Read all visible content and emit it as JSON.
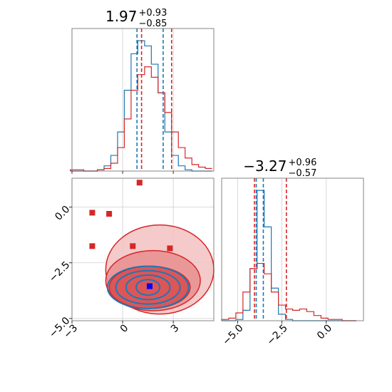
{
  "colors": {
    "red": "#d62728",
    "blue": "#1f77b4",
    "red_fill": "#e8898a",
    "grid": "#cfcfcf"
  },
  "chart_data": [
    {
      "type": "histogram",
      "panel": "top-left",
      "title_value": "1.97",
      "title_plus": "+0.93",
      "title_minus": "−0.85",
      "xlim": [
        -3,
        5.4
      ],
      "bins_x": [
        -2.9,
        -2.5,
        -2.1,
        -1.7,
        -1.3,
        -0.9,
        -0.5,
        -0.1,
        0.3,
        0.7,
        1.1,
        1.5,
        1.9,
        2.3,
        2.7,
        3.1,
        3.5,
        3.9,
        4.3,
        4.7,
        5.1
      ],
      "series": [
        {
          "color": "blue",
          "density": [
            0,
            0,
            0,
            0,
            0.01,
            0.04,
            0.12,
            0.3,
            0.62,
            0.9,
            1.0,
            0.96,
            0.82,
            0.6,
            0.3,
            0.12,
            0.04,
            0.01,
            0,
            0,
            0
          ]
        },
        {
          "color": "red",
          "density": [
            0.01,
            0.01,
            0,
            0,
            0.01,
            0.02,
            0.06,
            0.18,
            0.4,
            0.62,
            0.74,
            0.8,
            0.72,
            0.6,
            0.45,
            0.3,
            0.18,
            0.1,
            0.05,
            0.03,
            0.02
          ]
        }
      ],
      "quantiles": [
        {
          "color": "blue",
          "values": [
            0.85,
            2.4
          ]
        },
        {
          "color": "red",
          "values": [
            1.12,
            2.9
          ]
        }
      ]
    },
    {
      "type": "scatter",
      "panel": "bottom-left",
      "xlim": [
        -3,
        5.4
      ],
      "ylim": [
        -5.1,
        1.3
      ],
      "x_ticks": [
        -3,
        0,
        3
      ],
      "x_tick_labels": [
        "−3",
        "0",
        "3"
      ],
      "y_ticks": [
        -5.0,
        -2.5,
        0.0
      ],
      "y_tick_labels": [
        "−5.0",
        "−2.5",
        "0.0"
      ],
      "red_squares": [
        [
          1.0,
          1.1
        ],
        [
          -1.8,
          -0.25
        ],
        [
          -0.8,
          -0.3
        ],
        [
          -1.8,
          -1.75
        ],
        [
          0.6,
          -1.75
        ],
        [
          2.8,
          -1.85
        ]
      ],
      "blue_square": [
        1.6,
        -3.55
      ],
      "red_contours": [
        {
          "cx": 1.6,
          "cy": -3.6,
          "rx": 2.4,
          "ry": 0.95
        },
        {
          "cx": 1.8,
          "cy": -3.3,
          "rx": 2.8,
          "ry": 1.35
        },
        {
          "cx": 2.2,
          "cy": -2.8,
          "rx": 3.2,
          "ry": 2.0
        }
      ],
      "blue_contours": [
        {
          "cx": 1.5,
          "cy": -3.6,
          "rx": 0.7,
          "ry": 0.35
        },
        {
          "cx": 1.5,
          "cy": -3.6,
          "rx": 1.3,
          "ry": 0.55
        },
        {
          "cx": 1.5,
          "cy": -3.6,
          "rx": 1.9,
          "ry": 0.75
        },
        {
          "cx": 1.5,
          "cy": -3.6,
          "rx": 2.4,
          "ry": 0.95
        }
      ]
    },
    {
      "type": "histogram",
      "panel": "bottom-right",
      "title_value": "−3.27",
      "title_plus": "+0.96",
      "title_minus": "−0.57",
      "xlim": [
        -5.9,
        2.1
      ],
      "x_ticks": [
        -5.0,
        -2.5,
        0.0
      ],
      "x_tick_labels": [
        "−5.0",
        "−2.5",
        "0.0"
      ],
      "bins_x": [
        -5.7,
        -5.3,
        -4.9,
        -4.5,
        -4.1,
        -3.7,
        -3.3,
        -2.9,
        -2.5,
        -2.1,
        -1.7,
        -1.3,
        -0.9,
        -0.5,
        -0.1,
        0.3,
        0.7,
        1.1,
        1.5
      ],
      "series": [
        {
          "color": "blue",
          "density": [
            0,
            0,
            0.01,
            0.08,
            0.4,
            1.0,
            0.72,
            0.25,
            0.05,
            0.01,
            0,
            0,
            0,
            0,
            0,
            0,
            0,
            0,
            0
          ]
        },
        {
          "color": "red",
          "density": [
            0.01,
            0.02,
            0.06,
            0.22,
            0.4,
            0.44,
            0.36,
            0.22,
            0.12,
            0.09,
            0.08,
            0.09,
            0.07,
            0.04,
            0.02,
            0.01,
            0.01,
            0,
            0
          ]
        }
      ],
      "quantiles": [
        {
          "color": "blue",
          "values": [
            -3.95,
            -3.55
          ]
        },
        {
          "color": "red",
          "values": [
            -4.05,
            -2.25
          ]
        }
      ]
    }
  ]
}
